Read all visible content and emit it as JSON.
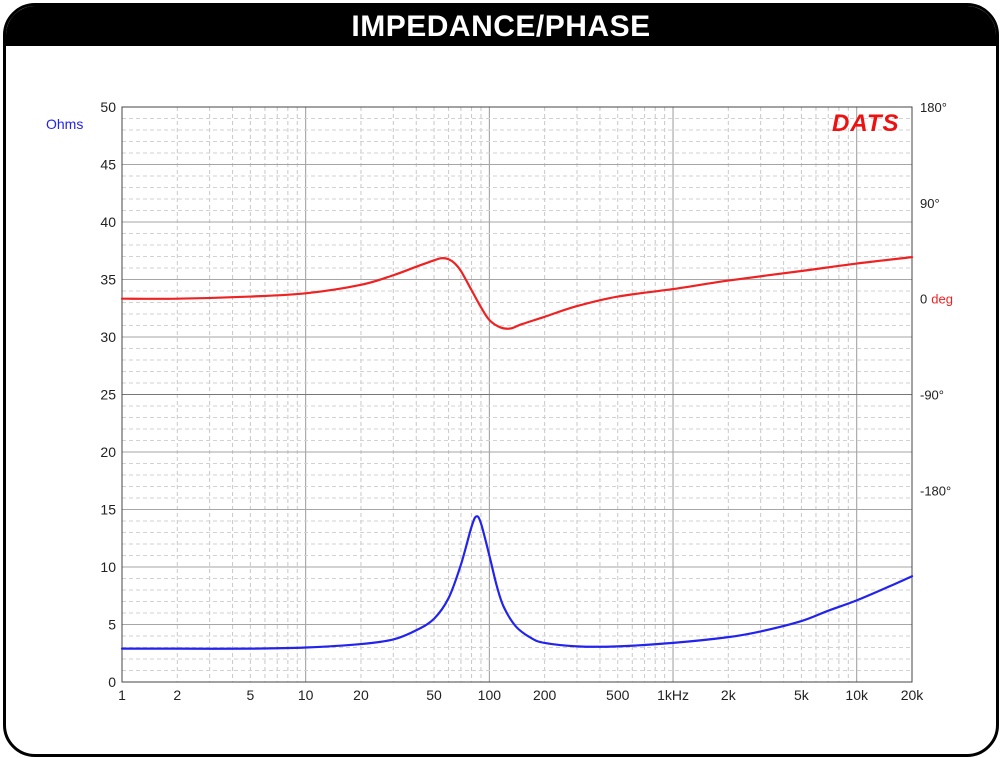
{
  "title": "IMPEDANCE/PHASE",
  "chart_data": {
    "type": "line",
    "title": "IMPEDANCE/PHASE",
    "x_scale": "log",
    "xlim": [
      1,
      20000
    ],
    "x_ticks": [
      {
        "value": 1,
        "label": "1"
      },
      {
        "value": 2,
        "label": "2"
      },
      {
        "value": 5,
        "label": "5"
      },
      {
        "value": 10,
        "label": "10"
      },
      {
        "value": 20,
        "label": "20"
      },
      {
        "value": 50,
        "label": "50"
      },
      {
        "value": 100,
        "label": "100"
      },
      {
        "value": 200,
        "label": "200"
      },
      {
        "value": 500,
        "label": "500"
      },
      {
        "value": 1000,
        "label": "1kHz"
      },
      {
        "value": 2000,
        "label": "2k"
      },
      {
        "value": 5000,
        "label": "5k"
      },
      {
        "value": 10000,
        "label": "10k"
      },
      {
        "value": 20000,
        "label": "20k"
      }
    ],
    "ylabel": "Ohms",
    "ylim": [
      0,
      50
    ],
    "y_ticks": [
      0,
      5,
      10,
      15,
      20,
      25,
      30,
      35,
      40,
      45,
      50
    ],
    "y2label": "deg",
    "y2lim": [
      -360,
      180
    ],
    "y2_ticks": [
      {
        "value": 180,
        "label": "180°"
      },
      {
        "value": 90,
        "label": "90°"
      },
      {
        "value": 0,
        "label": "0"
      },
      {
        "value": -90,
        "label": "-90°"
      },
      {
        "value": -180,
        "label": "-180°"
      }
    ],
    "grid": true,
    "logo": "DATS",
    "series": [
      {
        "name": "",
        "axis": "left",
        "color": "#2323ee",
        "points": [
          [
            1,
            2.9
          ],
          [
            2,
            2.9
          ],
          [
            5,
            2.9
          ],
          [
            10,
            3.0
          ],
          [
            20,
            3.3
          ],
          [
            30,
            3.7
          ],
          [
            40,
            4.5
          ],
          [
            50,
            5.5
          ],
          [
            60,
            7.3
          ],
          [
            70,
            10.2
          ],
          [
            80,
            13.5
          ],
          [
            85,
            14.4
          ],
          [
            90,
            13.8
          ],
          [
            100,
            11.0
          ],
          [
            110,
            8.3
          ],
          [
            120,
            6.5
          ],
          [
            140,
            4.8
          ],
          [
            170,
            3.8
          ],
          [
            200,
            3.4
          ],
          [
            300,
            3.1
          ],
          [
            500,
            3.1
          ],
          [
            1000,
            3.4
          ],
          [
            2000,
            3.9
          ],
          [
            3000,
            4.4
          ],
          [
            5000,
            5.3
          ],
          [
            7000,
            6.2
          ],
          [
            10000,
            7.1
          ],
          [
            15000,
            8.3
          ],
          [
            20000,
            9.2
          ]
        ]
      },
      {
        "name": "",
        "axis": "right",
        "color": "#ee2222",
        "points": [
          [
            1,
            0
          ],
          [
            2,
            0
          ],
          [
            5,
            2
          ],
          [
            10,
            5
          ],
          [
            20,
            13
          ],
          [
            30,
            22
          ],
          [
            40,
            30
          ],
          [
            50,
            36
          ],
          [
            55,
            38
          ],
          [
            60,
            37
          ],
          [
            65,
            33
          ],
          [
            70,
            26
          ],
          [
            80,
            8
          ],
          [
            90,
            -8
          ],
          [
            100,
            -20
          ],
          [
            115,
            -27
          ],
          [
            130,
            -28
          ],
          [
            150,
            -24
          ],
          [
            200,
            -17
          ],
          [
            300,
            -7
          ],
          [
            500,
            2
          ],
          [
            1000,
            9
          ],
          [
            2000,
            17
          ],
          [
            5000,
            26
          ],
          [
            10000,
            33
          ],
          [
            20000,
            39
          ]
        ]
      }
    ]
  }
}
